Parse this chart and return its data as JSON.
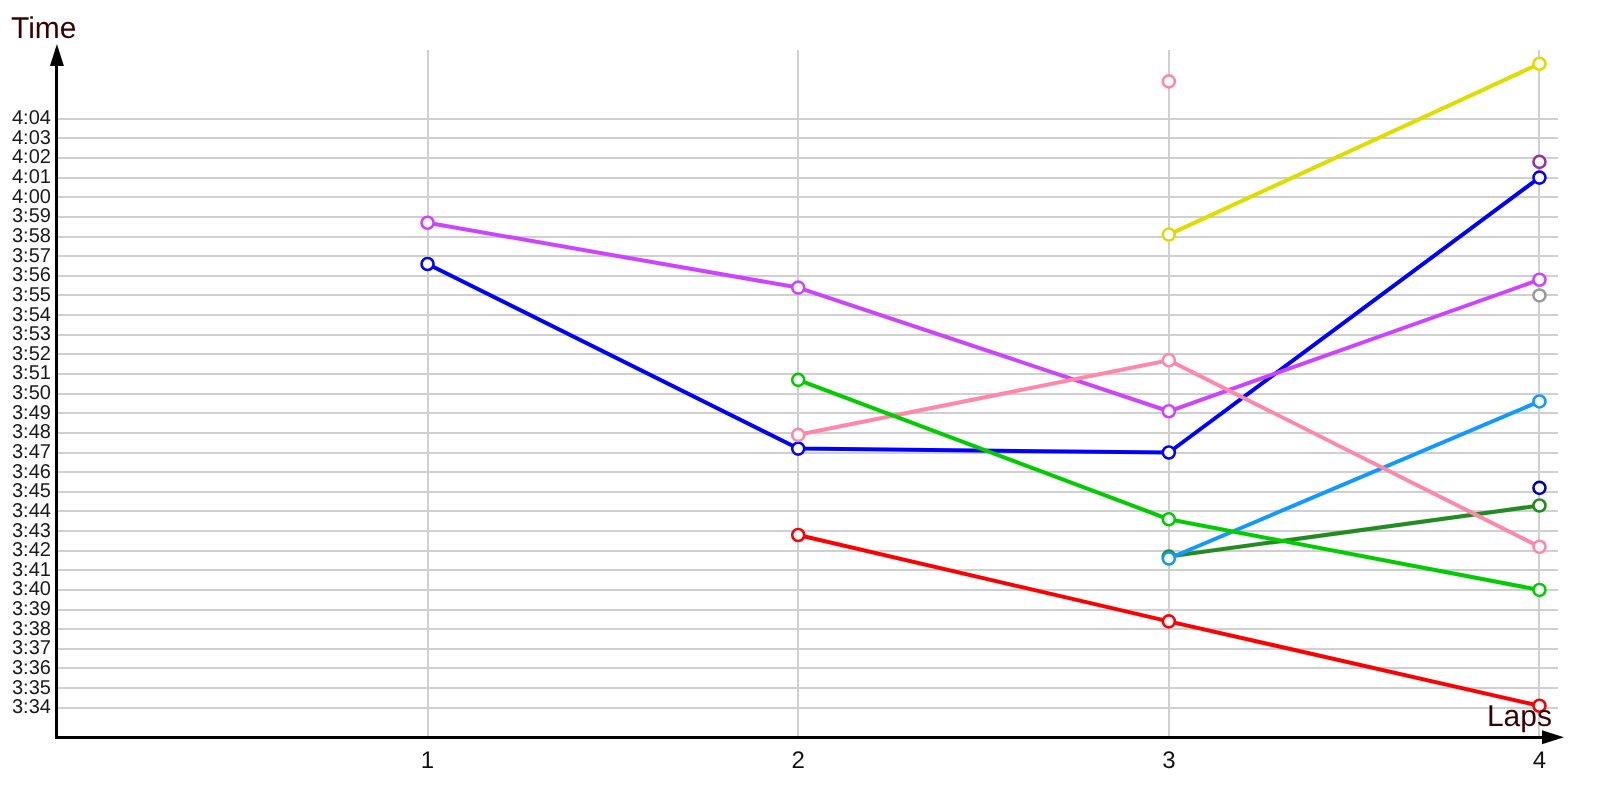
{
  "chart_data": {
    "type": "line",
    "xlabel": "Laps",
    "ylabel": "Time",
    "x": [
      1,
      2,
      3,
      4
    ],
    "xlim": [
      0,
      4.05
    ],
    "xticks": [
      1,
      2,
      3,
      4
    ],
    "ylim": [
      212.5,
      247.5
    ],
    "yticks": [
      {
        "value": 214,
        "label": "3:34"
      },
      {
        "value": 215,
        "label": "3:35"
      },
      {
        "value": 216,
        "label": "3:36"
      },
      {
        "value": 217,
        "label": "3:37"
      },
      {
        "value": 218,
        "label": "3:38"
      },
      {
        "value": 219,
        "label": "3:39"
      },
      {
        "value": 220,
        "label": "3:40"
      },
      {
        "value": 221,
        "label": "3:41"
      },
      {
        "value": 222,
        "label": "3:42"
      },
      {
        "value": 223,
        "label": "3:43"
      },
      {
        "value": 224,
        "label": "3:44"
      },
      {
        "value": 225,
        "label": "3:45"
      },
      {
        "value": 226,
        "label": "3:46"
      },
      {
        "value": 227,
        "label": "3:47"
      },
      {
        "value": 228,
        "label": "3:48"
      },
      {
        "value": 229,
        "label": "3:49"
      },
      {
        "value": 230,
        "label": "3:50"
      },
      {
        "value": 231,
        "label": "3:51"
      },
      {
        "value": 232,
        "label": "3:52"
      },
      {
        "value": 233,
        "label": "3:53"
      },
      {
        "value": 234,
        "label": "3:54"
      },
      {
        "value": 235,
        "label": "3:55"
      },
      {
        "value": 236,
        "label": "3:56"
      },
      {
        "value": 237,
        "label": "3:57"
      },
      {
        "value": 238,
        "label": "3:58"
      },
      {
        "value": 239,
        "label": "3:59"
      },
      {
        "value": 240,
        "label": "4:00"
      },
      {
        "value": 241,
        "label": "4:01"
      },
      {
        "value": 242,
        "label": "4:02"
      },
      {
        "value": 243,
        "label": "4:03"
      },
      {
        "value": 244,
        "label": "4:04"
      }
    ],
    "grid": true,
    "marker": "circle",
    "series": [
      {
        "color": "#ff0000",
        "values": [
          null,
          222.8,
          218.4,
          214.1
        ]
      },
      {
        "color": "#00cc00",
        "values": [
          null,
          230.7,
          223.6,
          220.0
        ]
      },
      {
        "color": "#ff88aa",
        "values": [
          null,
          227.9,
          231.7,
          222.2
        ]
      },
      {
        "color": "#cc44ff",
        "values": [
          238.7,
          235.4,
          229.1,
          235.8
        ]
      },
      {
        "color": "#0000ff",
        "values": [
          236.6,
          227.2,
          227.0,
          241.0
        ]
      },
      {
        "color": "#1199ff",
        "values": [
          null,
          null,
          221.6,
          229.6
        ]
      },
      {
        "color": "#228b22",
        "values": [
          null,
          null,
          221.7,
          224.3
        ]
      },
      {
        "color": "#dddd00",
        "values": [
          null,
          null,
          238.1,
          246.8
        ]
      },
      {
        "color": "#ff88aa",
        "values": [
          null,
          null,
          245.9,
          null
        ]
      },
      {
        "color": "#0000bb",
        "values": [
          null,
          null,
          null,
          225.2
        ]
      },
      {
        "color": "#999999",
        "values": [
          null,
          null,
          null,
          235.0
        ]
      },
      {
        "color": "#993399",
        "values": [
          null,
          null,
          null,
          241.8
        ]
      }
    ]
  }
}
